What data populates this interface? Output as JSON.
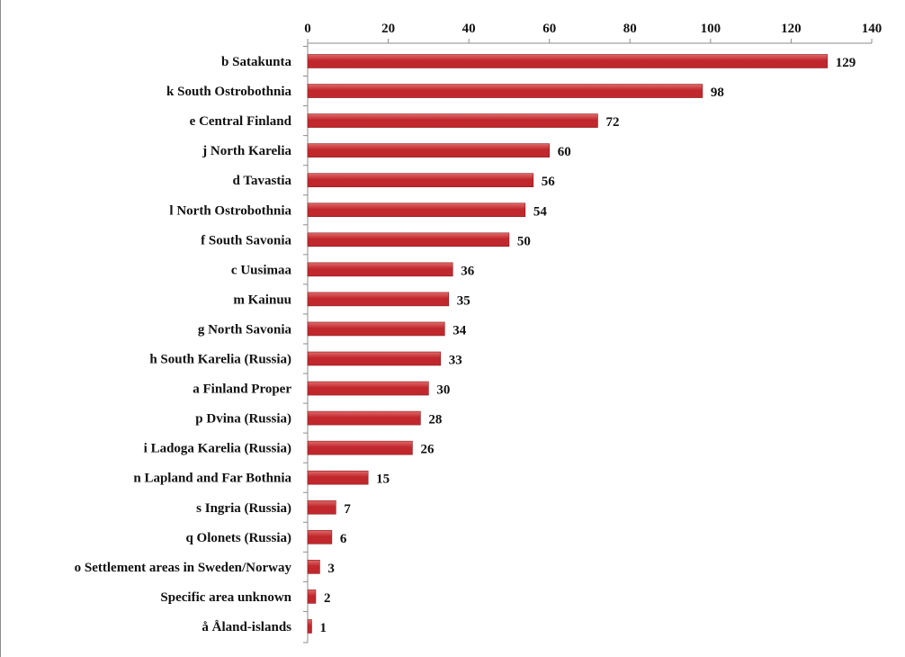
{
  "chart_data": {
    "type": "bar",
    "orientation": "horizontal",
    "categories": [
      "b Satakunta",
      "k South Ostrobothnia",
      "e Central Finland",
      "j North Karelia",
      "d Tavastia",
      "l North Ostrobothnia",
      "f South Savonia",
      "c Uusimaa",
      "m Kainuu",
      "g North Savonia",
      "h South Karelia (Russia)",
      "a Finland Proper",
      "p Dvina (Russia)",
      "i Ladoga Karelia (Russia)",
      "n Lapland and Far Bothnia",
      "s Ingria (Russia)",
      "q Olonets (Russia)",
      "o Settlement areas in Sweden/Norway",
      "Specific area unknown",
      "å Åland-islands"
    ],
    "values": [
      129,
      98,
      72,
      60,
      56,
      54,
      50,
      36,
      35,
      34,
      33,
      30,
      28,
      26,
      15,
      7,
      6,
      3,
      2,
      1
    ],
    "xlim": [
      0,
      140
    ],
    "xticks": [
      0,
      20,
      40,
      60,
      80,
      100,
      120,
      140
    ],
    "xtick_labels": [
      "0",
      "20",
      "40",
      "60",
      "80",
      "100",
      "120",
      "140"
    ],
    "axis_position": "top",
    "grid": false,
    "legend": "none",
    "bar_color": "#c0282d",
    "bar_color_light": "#e06a6a"
  }
}
